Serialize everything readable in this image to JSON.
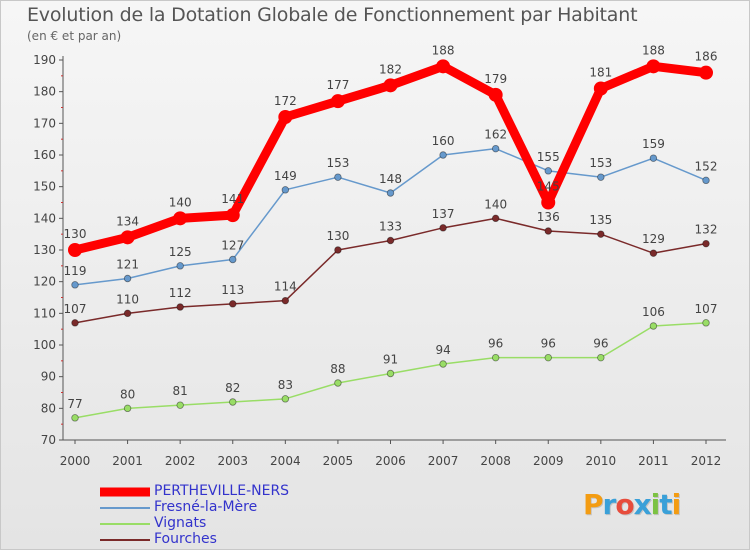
{
  "header": {
    "title": "Evolution de la Dotation Globale de Fonctionnement par Habitant",
    "subtitle": "(en € et par an)"
  },
  "logo": {
    "text": "Proxiti"
  },
  "chart_data": {
    "type": "line",
    "title": "Evolution de la Dotation Globale de Fonctionnement par Habitant",
    "subtitle": "(en € et par an)",
    "xlabel": "",
    "ylabel": "",
    "x": [
      "2000",
      "2001",
      "2002",
      "2003",
      "2004",
      "2005",
      "2006",
      "2007",
      "2008",
      "2009",
      "2010",
      "2011",
      "2012"
    ],
    "ylim": [
      70,
      190
    ],
    "yticks": [
      70,
      80,
      90,
      100,
      110,
      120,
      130,
      140,
      150,
      160,
      170,
      180,
      190
    ],
    "grid": false,
    "legend_position": "bottom-left",
    "series": [
      {
        "name": "PERTHEVILLE-NERS",
        "values": [
          130,
          134,
          140,
          141,
          172,
          177,
          182,
          188,
          179,
          145,
          181,
          188,
          186
        ],
        "color": "#ff0000",
        "label_color": "#3333cc",
        "emphasis": true
      },
      {
        "name": "Fresné-la-Mère",
        "values": [
          119,
          121,
          125,
          127,
          149,
          153,
          148,
          160,
          162,
          155,
          153,
          159,
          152
        ],
        "color": "#6699cc",
        "label_color": "#3333cc"
      },
      {
        "name": "Vignats",
        "values": [
          77,
          80,
          81,
          82,
          83,
          88,
          91,
          94,
          96,
          96,
          96,
          106,
          107
        ],
        "color": "#99dd66",
        "label_color": "#3333cc"
      },
      {
        "name": "Fourches",
        "values": [
          107,
          110,
          112,
          113,
          114,
          130,
          133,
          137,
          140,
          136,
          135,
          129,
          132
        ],
        "color": "#7a2a2a",
        "label_color": "#3333cc"
      }
    ]
  }
}
